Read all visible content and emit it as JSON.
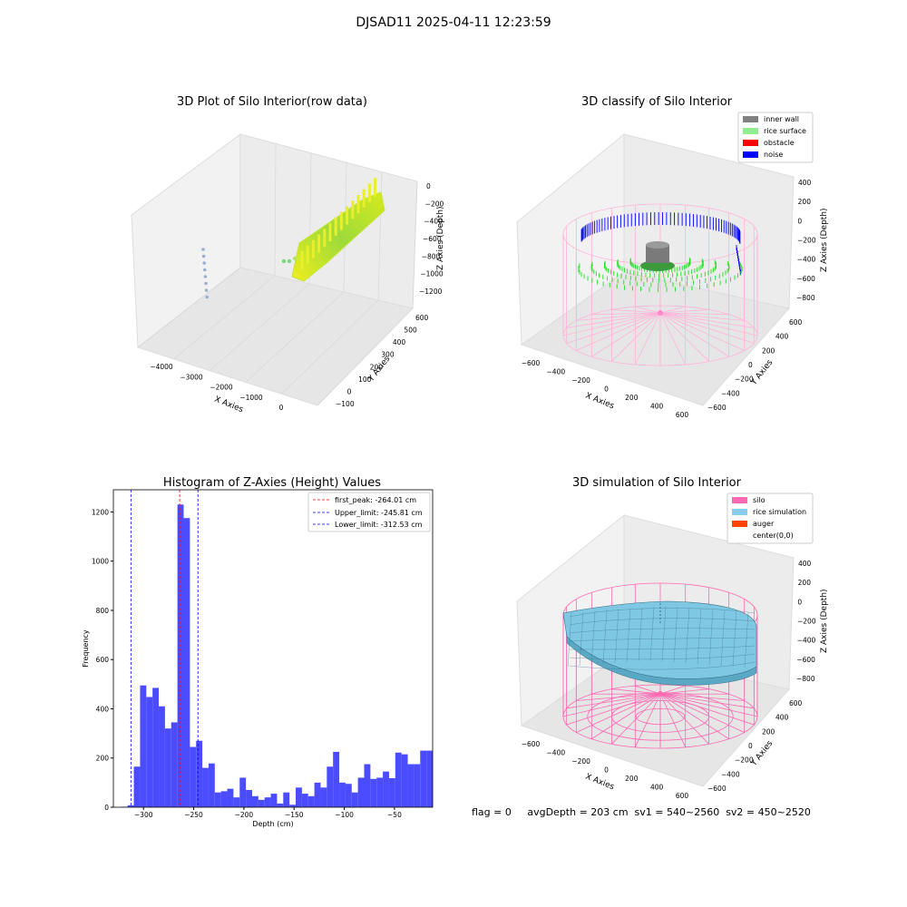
{
  "figure": {
    "suptitle": "DJSAD11 2025-04-11 12:23:59",
    "footer": "flag = 0     avgDepth = 203 cm  sv1 = 540~2560  sv2 = 450~2520"
  },
  "colors": {
    "hist_bar": "#4b4bff",
    "first_peak_line": "#ff0000",
    "limit_line": "#0000ff",
    "inner_wall": "#808080",
    "rice_surface": "#90ee90",
    "obstacle": "#ff0000",
    "noise": "#0000ff",
    "silo": "#ff69b4",
    "rice_simulation": "#87ceeb",
    "auger": "#ff4500"
  },
  "chart_data": [
    {
      "type": "scatter",
      "projection": "3d",
      "title": "3D Plot of Silo Interior(row data)",
      "xlabel": "X Axies",
      "ylabel": "Y Axies",
      "zlabel": "Z Axies (Depth)",
      "xticks": [
        "−4000",
        "−3000",
        "−2000",
        "−1000",
        "0"
      ],
      "yticks": [
        "−100",
        "0",
        "100",
        "200",
        "300",
        "400",
        "500",
        "600"
      ],
      "zticks": [
        "0",
        "−200",
        "−400",
        "−600",
        "−800",
        "−1000",
        "−1200"
      ],
      "xlim": [
        -4500,
        500
      ],
      "ylim": [
        -150,
        600
      ],
      "zlim": [
        -1350,
        50
      ],
      "series": [
        {
          "x": [
            -200,
            -200,
            -200,
            -200,
            -200
          ],
          "y": [
            200,
            250,
            300,
            350,
            400
          ],
          "z": [
            -900,
            -700,
            -500,
            -300,
            -100
          ]
        }
      ]
    },
    {
      "type": "scatter",
      "projection": "3d",
      "title": "3D classify of Silo Interior",
      "xlabel": "X Axies",
      "ylabel": "Y Axies",
      "zlabel": "Z Axies (Depth)",
      "xticks": [
        "−600",
        "−400",
        "−200",
        "0",
        "200",
        "400",
        "600"
      ],
      "yticks": [
        "−600",
        "−400",
        "−200",
        "0",
        "200",
        "400",
        "600"
      ],
      "zticks": [
        "400",
        "200",
        "0",
        "−200",
        "−400",
        "−600",
        "−800"
      ],
      "legend": [
        "inner wall",
        "rice surface",
        "obstacle",
        "noise"
      ],
      "legend_position": "top-right"
    },
    {
      "type": "bar",
      "title": "Histogram of Z-Axies (Height) Values",
      "xlabel": "Depth (cm)",
      "ylabel": "Frequency",
      "xlim": [
        -330,
        -12
      ],
      "ylim": [
        0,
        1290
      ],
      "xticks": [
        -300,
        -250,
        -200,
        -150,
        -100,
        -50
      ],
      "yticks": [
        0,
        200,
        400,
        600,
        800,
        1000,
        1200
      ],
      "bin_left": -322,
      "bin_width": 6.2,
      "values": [
        2,
        8,
        165,
        495,
        448,
        485,
        410,
        320,
        345,
        1230,
        1175,
        245,
        270,
        160,
        178,
        60,
        65,
        75,
        40,
        120,
        70,
        45,
        30,
        40,
        55,
        15,
        60,
        10,
        80,
        55,
        45,
        100,
        80,
        165,
        225,
        100,
        95,
        60,
        120,
        175,
        115,
        120,
        145,
        118,
        222,
        215,
        175,
        175,
        230,
        230
      ],
      "vlines": [
        {
          "x": -264.01,
          "label": "first_peak: -264.01 cm",
          "color": "#ff0000"
        },
        {
          "x": -245.81,
          "label": "Upper_limit: -245.81 cm",
          "color": "#0000ff"
        },
        {
          "x": -312.53,
          "label": "Lower_limit: -312.53 cm",
          "color": "#0000ff"
        }
      ],
      "legend_position": "top-right"
    },
    {
      "type": "surface",
      "projection": "3d",
      "title": "3D simulation of Silo Interior",
      "xlabel": "X Axies",
      "ylabel": "Y Axies",
      "zlabel": "Z Axies (Depth)",
      "xticks": [
        "−600",
        "−400",
        "−200",
        "0",
        "200",
        "400",
        "600"
      ],
      "yticks": [
        "−600",
        "−400",
        "−200",
        "0",
        "200",
        "400",
        "600"
      ],
      "zticks": [
        "400",
        "200",
        "0",
        "−200",
        "−400",
        "−600",
        "−800"
      ],
      "legend": [
        "silo",
        "rice simulation",
        "auger",
        "center(0,0)"
      ],
      "legend_position": "top-right"
    }
  ]
}
